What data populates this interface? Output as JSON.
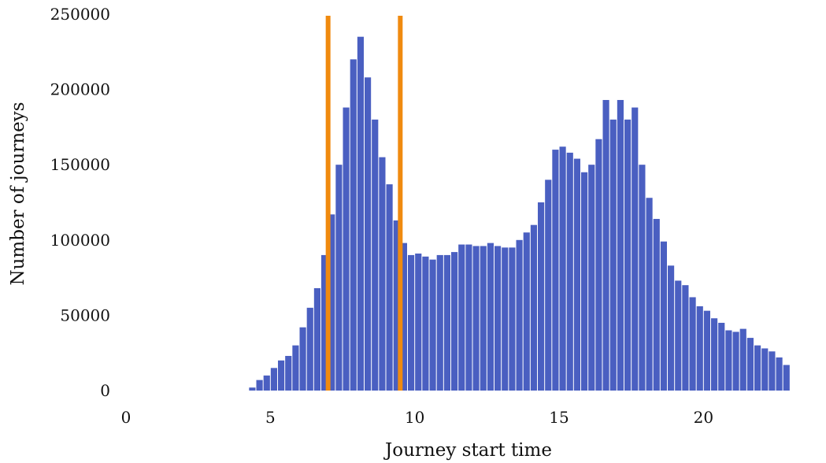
{
  "chart_data": {
    "type": "bar",
    "title": "",
    "xlabel": "Journey start time",
    "ylabel": "Number of journeys",
    "xlim": [
      0,
      24
    ],
    "ylim": [
      0,
      250000
    ],
    "xticks": [
      "0",
      "5",
      "10",
      "15",
      "20"
    ],
    "yticks": [
      "0",
      "50000",
      "100000",
      "150000",
      "200000",
      "250000"
    ],
    "bin_width": 0.25,
    "bar_color": "#4a5fc1",
    "grid": false,
    "bins": [
      {
        "x": 4.375,
        "y": 2000
      },
      {
        "x": 4.625,
        "y": 7000
      },
      {
        "x": 4.875,
        "y": 10000
      },
      {
        "x": 5.125,
        "y": 15000
      },
      {
        "x": 5.375,
        "y": 20000
      },
      {
        "x": 5.625,
        "y": 23000
      },
      {
        "x": 5.875,
        "y": 30000
      },
      {
        "x": 6.125,
        "y": 42000
      },
      {
        "x": 6.375,
        "y": 55000
      },
      {
        "x": 6.625,
        "y": 68000
      },
      {
        "x": 6.875,
        "y": 90000
      },
      {
        "x": 7.125,
        "y": 117000
      },
      {
        "x": 7.375,
        "y": 150000
      },
      {
        "x": 7.625,
        "y": 188000
      },
      {
        "x": 7.875,
        "y": 220000
      },
      {
        "x": 8.125,
        "y": 235000
      },
      {
        "x": 8.375,
        "y": 208000
      },
      {
        "x": 8.625,
        "y": 180000
      },
      {
        "x": 8.875,
        "y": 155000
      },
      {
        "x": 9.125,
        "y": 137000
      },
      {
        "x": 9.375,
        "y": 113000
      },
      {
        "x": 9.625,
        "y": 98000
      },
      {
        "x": 9.875,
        "y": 90000
      },
      {
        "x": 10.125,
        "y": 91000
      },
      {
        "x": 10.375,
        "y": 89000
      },
      {
        "x": 10.625,
        "y": 87000
      },
      {
        "x": 10.875,
        "y": 90000
      },
      {
        "x": 11.125,
        "y": 90000
      },
      {
        "x": 11.375,
        "y": 92000
      },
      {
        "x": 11.625,
        "y": 97000
      },
      {
        "x": 11.875,
        "y": 97000
      },
      {
        "x": 12.125,
        "y": 96000
      },
      {
        "x": 12.375,
        "y": 96000
      },
      {
        "x": 12.625,
        "y": 98000
      },
      {
        "x": 12.875,
        "y": 96000
      },
      {
        "x": 13.125,
        "y": 95000
      },
      {
        "x": 13.375,
        "y": 95000
      },
      {
        "x": 13.625,
        "y": 100000
      },
      {
        "x": 13.875,
        "y": 105000
      },
      {
        "x": 14.125,
        "y": 110000
      },
      {
        "x": 14.375,
        "y": 125000
      },
      {
        "x": 14.625,
        "y": 140000
      },
      {
        "x": 14.875,
        "y": 160000
      },
      {
        "x": 15.125,
        "y": 162000
      },
      {
        "x": 15.375,
        "y": 158000
      },
      {
        "x": 15.625,
        "y": 154000
      },
      {
        "x": 15.875,
        "y": 145000
      },
      {
        "x": 16.125,
        "y": 150000
      },
      {
        "x": 16.375,
        "y": 167000
      },
      {
        "x": 16.625,
        "y": 193000
      },
      {
        "x": 16.875,
        "y": 180000
      },
      {
        "x": 17.125,
        "y": 193000
      },
      {
        "x": 17.375,
        "y": 180000
      },
      {
        "x": 17.625,
        "y": 188000
      },
      {
        "x": 17.875,
        "y": 150000
      },
      {
        "x": 18.125,
        "y": 128000
      },
      {
        "x": 18.375,
        "y": 114000
      },
      {
        "x": 18.625,
        "y": 99000
      },
      {
        "x": 18.875,
        "y": 83000
      },
      {
        "x": 19.125,
        "y": 73000
      },
      {
        "x": 19.375,
        "y": 70000
      },
      {
        "x": 19.625,
        "y": 62000
      },
      {
        "x": 19.875,
        "y": 56000
      },
      {
        "x": 20.125,
        "y": 53000
      },
      {
        "x": 20.375,
        "y": 48000
      },
      {
        "x": 20.625,
        "y": 45000
      },
      {
        "x": 20.875,
        "y": 40000
      },
      {
        "x": 21.125,
        "y": 39000
      },
      {
        "x": 21.375,
        "y": 41000
      },
      {
        "x": 21.625,
        "y": 35000
      },
      {
        "x": 21.875,
        "y": 30000
      },
      {
        "x": 22.125,
        "y": 28000
      },
      {
        "x": 22.375,
        "y": 26000
      },
      {
        "x": 22.625,
        "y": 22000
      },
      {
        "x": 22.875,
        "y": 17000
      }
    ],
    "vertical_lines": [
      {
        "x": 7.0,
        "color": "#f08a0f"
      },
      {
        "x": 9.5,
        "color": "#f08a0f"
      }
    ]
  }
}
